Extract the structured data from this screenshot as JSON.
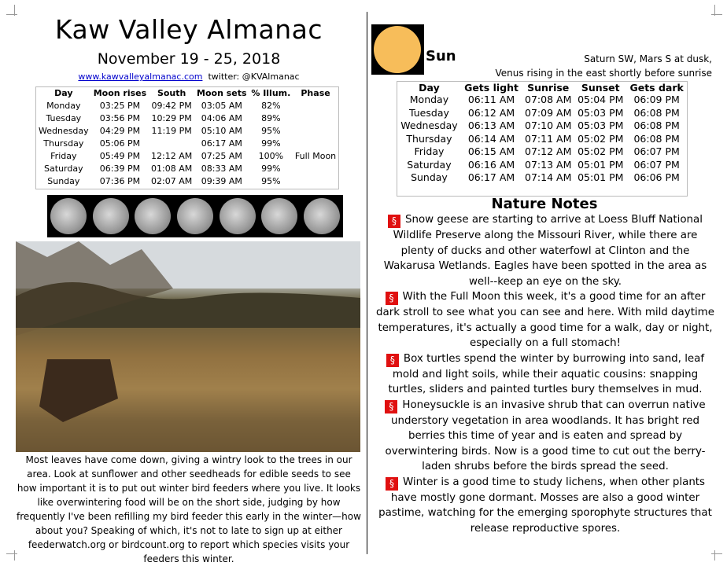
{
  "left": {
    "title": "Kaw Valley Almanac",
    "dates": "November 19 - 25, 2018",
    "website": "www.kawvalleyalmanac.com",
    "twitter": "twitter: @KVAlmanac",
    "moon_table": {
      "headers": [
        "Day",
        "Moon rises",
        "South",
        "Moon sets",
        "% Illum.",
        "Phase"
      ],
      "rows": [
        [
          "Monday",
          "03:25 PM",
          "09:42 PM",
          "03:05 AM",
          "82%",
          ""
        ],
        [
          "Tuesday",
          "03:56 PM",
          "10:29 PM",
          "04:06 AM",
          "89%",
          ""
        ],
        [
          "Wednesday",
          "04:29 PM",
          "11:19 PM",
          "05:10 AM",
          "95%",
          ""
        ],
        [
          "Thursday",
          "05:06 PM",
          "",
          "06:17 AM",
          "99%",
          ""
        ],
        [
          "Friday",
          "05:49 PM",
          "12:12 AM",
          "07:25 AM",
          "100%",
          "Full Moon"
        ],
        [
          "Saturday",
          "06:39 PM",
          "01:08 AM",
          "08:33 AM",
          "99%",
          ""
        ],
        [
          "Sunday",
          "07:36 PM",
          "02:07 AM",
          "09:39 AM",
          "95%",
          ""
        ]
      ]
    },
    "caption": "Most leaves have come down, giving a wintry look to the trees in our area. Look at sunflower and other seedheads for edible seeds to see how important it is to put out winter bird feeders where you live. It looks like overwintering food will be on the short side, judging by how frequently I've been refilling my bird feeder this early in the winter—how about you? Speaking of which, it's not to late to sign up at either feederwatch.org or birdcount.org to report which species visits your feeders this winter."
  },
  "right": {
    "sun_label": "Sun",
    "planets_line1": "Saturn SW, Mars S at dusk,",
    "planets_line2": "Venus rising in the east shortly before sunrise",
    "sun_table": {
      "headers": [
        "Day",
        "Gets light",
        "Sunrise",
        "Sunset",
        "Gets dark"
      ],
      "rows": [
        [
          "Monday",
          "06:11 AM",
          "07:08 AM",
          "05:04 PM",
          "06:09 PM"
        ],
        [
          "Tuesday",
          "06:12 AM",
          "07:09 AM",
          "05:03 PM",
          "06:08 PM"
        ],
        [
          "Wednesday",
          "06:13 AM",
          "07:10 AM",
          "05:03 PM",
          "06:08 PM"
        ],
        [
          "Thursday",
          "06:14 AM",
          "07:11 AM",
          "05:02 PM",
          "06:08 PM"
        ],
        [
          "Friday",
          "06:15 AM",
          "07:12 AM",
          "05:02 PM",
          "06:07 PM"
        ],
        [
          "Saturday",
          "06:16 AM",
          "07:13 AM",
          "05:01 PM",
          "06:07 PM"
        ],
        [
          "Sunday",
          "06:17 AM",
          "07:14 AM",
          "05:01 PM",
          "06:06 PM"
        ]
      ]
    },
    "nature_title": "Nature Notes",
    "section_symbol": "§",
    "notes": [
      "Snow geese are starting to arrive at Loess Bluff National Wildlife Preserve along the Missouri River, while there are plenty of ducks and other waterfowl at Clinton and the Wakarusa Wetlands. Eagles have been spotted in the area as well--keep an eye on the sky.",
      "With the Full Moon this week, it's a good time for an after dark stroll to see what you can see and here. With mild daytime temperatures, it's actually a good time for a walk, day or night, especially on a full stomach!",
      "Box turtles spend the winter by burrowing into sand, leaf mold and light soils, while their aquatic cousins: snapping turtles, sliders and painted turtles bury themselves in mud.",
      "Honeysuckle is an invasive shrub that can overrun native understory vegetation in area woodlands. It has bright red berries this time of year and is eaten and spread by overwintering birds. Now is a good time to cut out the berry-laden shrubs before the birds spread the seed.",
      "Winter is a good time to study lichens, when other plants have mostly gone dormant. Mosses are also a good winter pastime, watching for the emerging sporophyte structures that release reproductive spores."
    ],
    "accent": "#e01010"
  }
}
